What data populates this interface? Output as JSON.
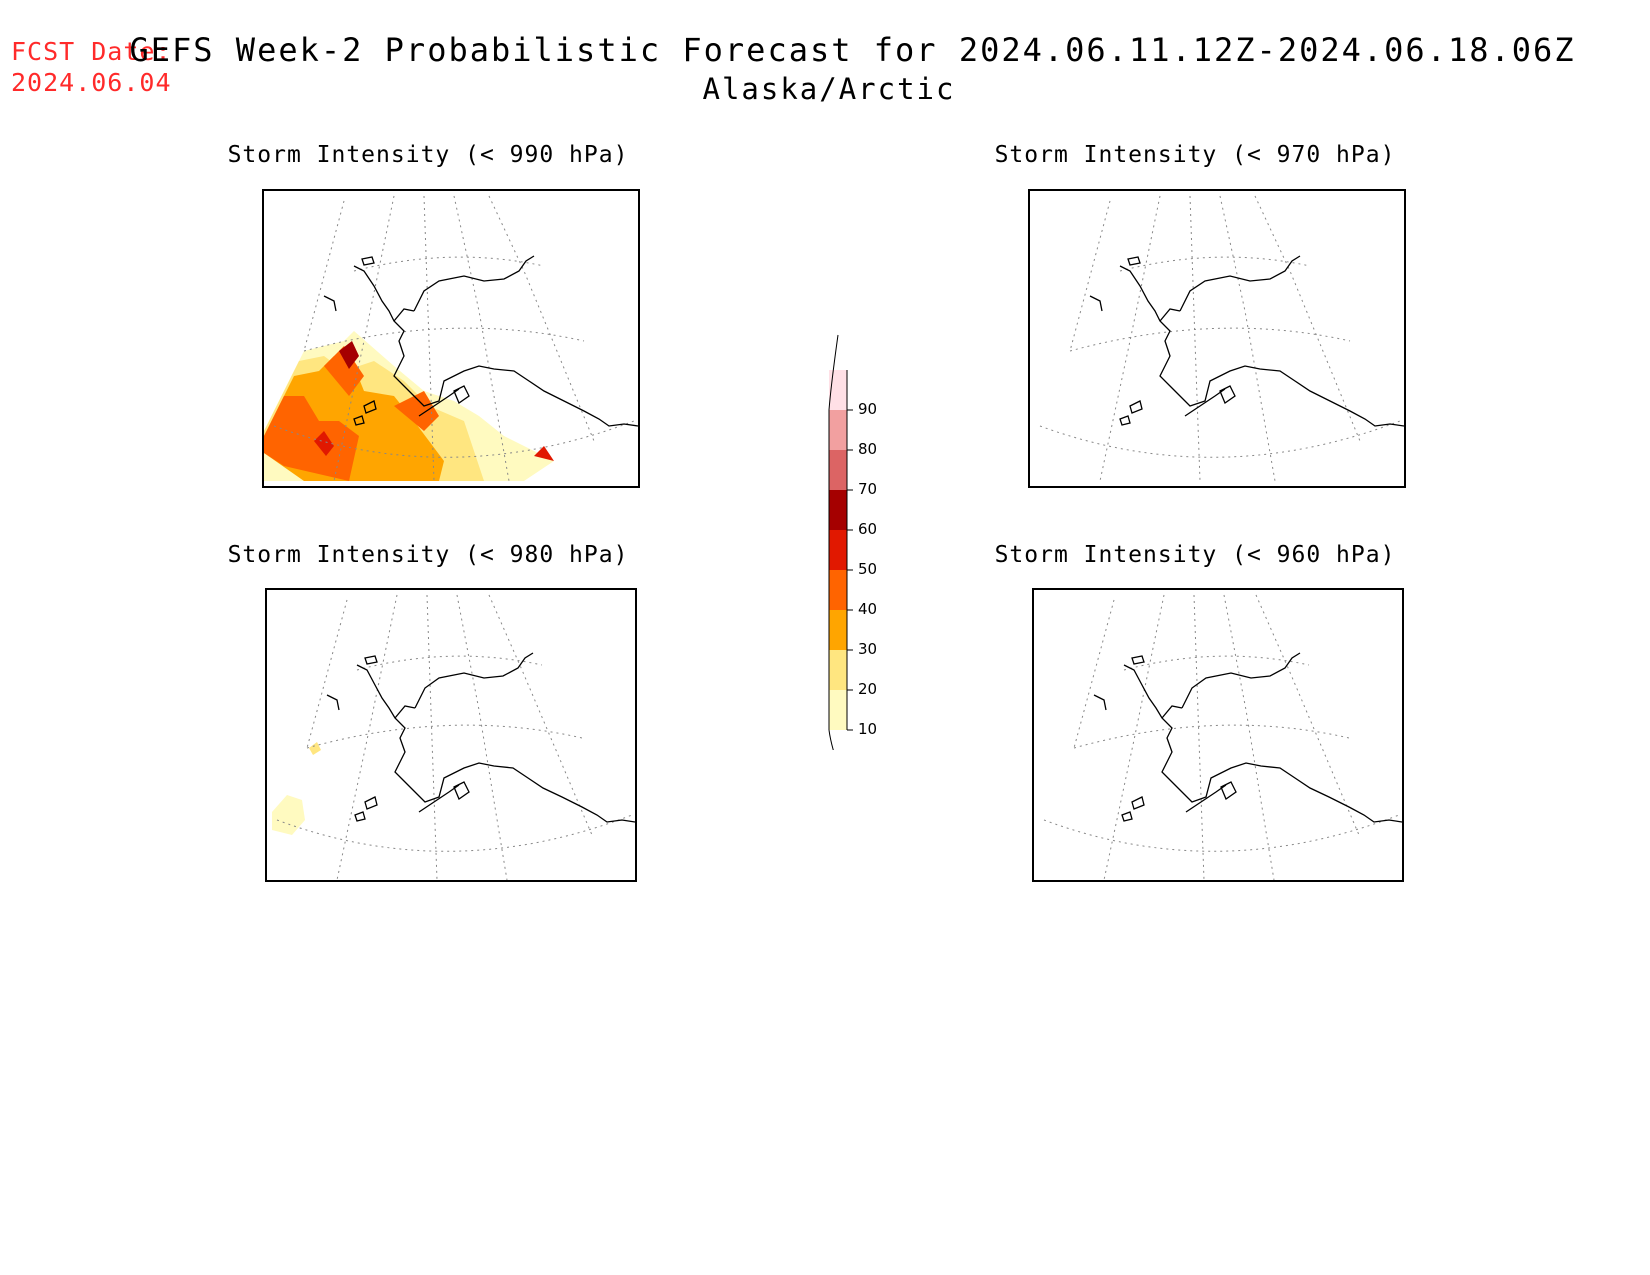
{
  "header": {
    "fcst_label": "FCST Date:",
    "fcst_date": "2024.06.04",
    "title": "GEFS Week-2 Probabilistic Forecast for 2024.06.11.12Z-2024.06.18.06Z",
    "subtitle": "Alaska/Arctic"
  },
  "panels": [
    {
      "title": "Storm Intensity (< 990 hPa)",
      "shading": "extensive"
    },
    {
      "title": "Storm Intensity (< 970 hPa)",
      "shading": "none"
    },
    {
      "title": "Storm Intensity (< 980 hPa)",
      "shading": "minimal"
    },
    {
      "title": "Storm Intensity (< 960 hPa)",
      "shading": "none"
    }
  ],
  "colorbar": {
    "levels": [
      "10",
      "20",
      "30",
      "40",
      "50",
      "60",
      "70",
      "80",
      "90"
    ],
    "colors": [
      "#fffac0",
      "#ffe680",
      "#ffa500",
      "#ff6400",
      "#e11800",
      "#a50000",
      "#dc6464",
      "#f2a0a0",
      "#ffe0e6"
    ]
  },
  "colors": {
    "fcst_text": "#ff2a2a",
    "coast": "#000000",
    "grid": "#888888"
  }
}
